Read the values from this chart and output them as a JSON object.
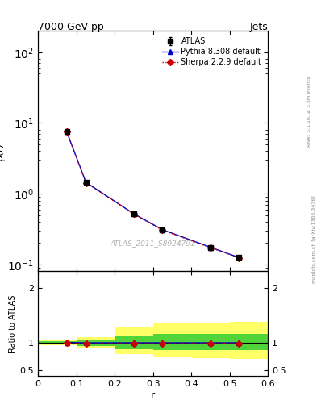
{
  "title": "7000 GeV pp",
  "title_right": "Jets",
  "xlabel": "r",
  "ylabel_main": "ρ(r)",
  "ylabel_ratio": "Ratio to ATLAS",
  "watermark": "ATLAS_2011_S8924791",
  "rivet_label": "Rivet 3.1.10, ≥ 3.5M events",
  "mcplots_label": "mcplots.cern.ch [arXiv:1306.3436]",
  "x_data": [
    0.075,
    0.125,
    0.25,
    0.325,
    0.45,
    0.525
  ],
  "atlas_y": [
    7.5,
    1.45,
    0.52,
    0.31,
    0.175,
    0.125
  ],
  "atlas_yerr": [
    0.15,
    0.04,
    0.015,
    0.01,
    0.006,
    0.005
  ],
  "pythia_y": [
    7.5,
    1.45,
    0.52,
    0.31,
    0.175,
    0.125
  ],
  "sherpa_y": [
    7.5,
    1.43,
    0.515,
    0.305,
    0.173,
    0.124
  ],
  "ratio_pythia": [
    1.005,
    1.0,
    1.0,
    1.0,
    1.0,
    1.0
  ],
  "ratio_sherpa": [
    1.0,
    0.985,
    0.99,
    0.985,
    0.99,
    0.992
  ],
  "band_x_edges": [
    0.0,
    0.1,
    0.2,
    0.3,
    0.4,
    0.5,
    0.6
  ],
  "yellow_band_low": [
    0.95,
    0.9,
    0.8,
    0.73,
    0.72,
    0.7
  ],
  "yellow_band_high": [
    1.05,
    1.1,
    1.28,
    1.35,
    1.37,
    1.38
  ],
  "green_band_low": [
    0.975,
    0.935,
    0.88,
    0.87,
    0.87,
    0.87
  ],
  "green_band_high": [
    1.025,
    1.065,
    1.13,
    1.16,
    1.16,
    1.16
  ],
  "atlas_color": "#000000",
  "pythia_color": "#0000cc",
  "sherpa_color": "#cc0000",
  "yellow_color": "#ffff66",
  "green_color": "#33cc33",
  "xlim": [
    0.0,
    0.6
  ],
  "ylim_main": [
    0.08,
    200.0
  ],
  "ylim_ratio": [
    0.4,
    2.3
  ]
}
